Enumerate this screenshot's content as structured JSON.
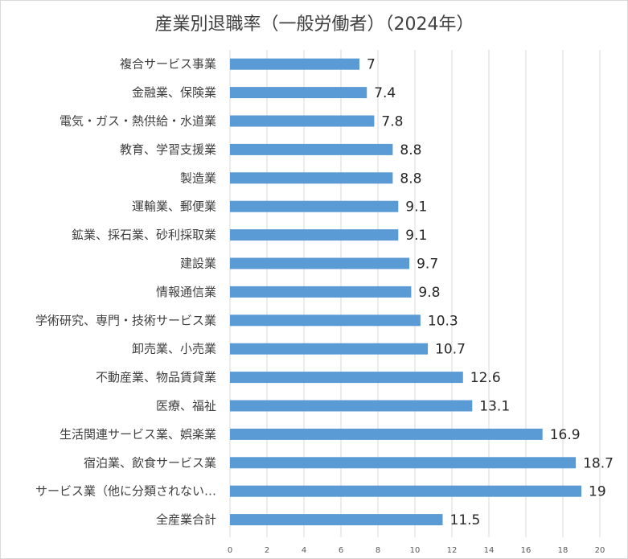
{
  "chart_data": {
    "type": "bar",
    "orientation": "horizontal",
    "title": "産業別退職率（一般労働者）（2024年）",
    "categories": [
      "複合サービス事業",
      "金融業、保険業",
      "電気・ガス・熱供給・水道業",
      "教育、学習支援業",
      "製造業",
      "運輸業、郵便業",
      "鉱業、採石業、砂利採取業",
      "建設業",
      "情報通信業",
      "学術研究、専門・技術サービス業",
      "卸売業、小売業",
      "不動産業、物品賃貸業",
      "医療、福祉",
      "生活関連サービス業、娯楽業",
      "宿泊業、飲食サービス業",
      "サービス業（他に分類されない…",
      "全産業合計"
    ],
    "values": [
      7,
      7.4,
      7.8,
      8.8,
      8.8,
      9.1,
      9.1,
      9.7,
      9.8,
      10.3,
      10.7,
      12.6,
      13.1,
      16.9,
      18.7,
      19,
      11.5
    ],
    "value_labels": [
      "7",
      "7.4",
      "7.8",
      "8.8",
      "8.8",
      "9.1",
      "9.1",
      "9.7",
      "9.8",
      "10.3",
      "10.7",
      "12.6",
      "13.1",
      "16.9",
      "18.7",
      "19",
      "11.5"
    ],
    "xlim": [
      0,
      20
    ],
    "xticks": [
      0,
      2,
      4,
      6,
      8,
      10,
      12,
      14,
      16,
      18,
      20
    ],
    "grid": true,
    "legend": "none",
    "bar_color": "#5b9bd5",
    "xlabel": "",
    "ylabel": ""
  }
}
